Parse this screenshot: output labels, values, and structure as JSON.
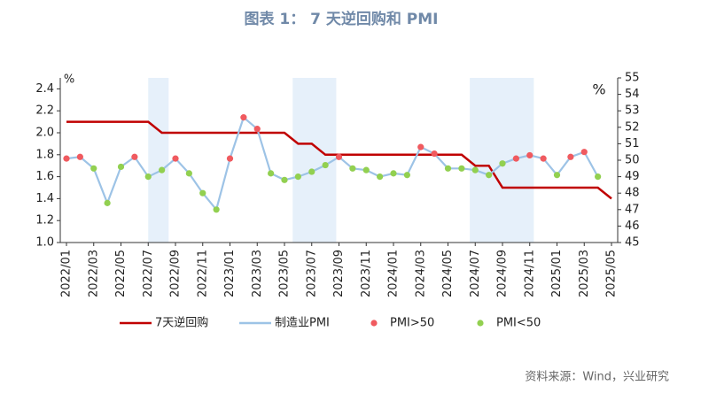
{
  "chart_data": {
    "type": "line",
    "title": "图表 1： 7 天逆回购和 PMI",
    "source": "资料来源：Wind，兴业研究",
    "y_unit": "%",
    "y2_unit": "%",
    "categories": [
      "2022/01",
      null,
      "2022/03",
      null,
      "2022/05",
      null,
      "2022/07",
      null,
      "2022/09",
      null,
      "2022/11",
      null,
      "2023/01",
      null,
      "2023/03",
      null,
      "2023/05",
      null,
      "2023/07",
      null,
      "2023/09",
      null,
      "2023/11",
      null,
      "2024/01",
      null,
      "2024/03",
      null,
      "2024/05",
      null,
      "2024/07",
      null,
      "2024/09",
      null,
      "2024/11",
      null,
      "2025/01",
      null,
      "2025/03",
      null,
      "2025/05"
    ],
    "ylim": [
      1.0,
      2.5
    ],
    "yticks": [
      {
        "value": 1.0,
        "label": "1.0"
      },
      1.2,
      1.4,
      1.6,
      1.8,
      {
        "value": 2.0,
        "label": "2.0"
      },
      2.2,
      2.4
    ],
    "y2lim": [
      45,
      55
    ],
    "y2ticks": [
      45,
      46,
      47,
      48,
      49,
      50,
      51,
      52,
      53,
      54,
      55
    ],
    "series": [
      {
        "name": "7天逆回购",
        "color": "#c00000",
        "style": "line",
        "values": [
          2.1,
          2.1,
          2.1,
          2.1,
          2.1,
          2.1,
          2.1,
          2.0,
          2.0,
          2.0,
          2.0,
          2.0,
          2.0,
          2.0,
          2.0,
          2.0,
          2.0,
          1.9,
          1.9,
          1.8,
          1.8,
          1.8,
          1.8,
          1.8,
          1.8,
          1.8,
          1.8,
          1.8,
          1.8,
          1.8,
          1.7,
          1.7,
          1.5,
          1.5,
          1.5,
          1.5,
          1.5,
          1.5,
          1.5,
          1.5,
          1.4
        ]
      },
      {
        "name": "制造业PMI",
        "color": "#9dc3e6",
        "style": "line",
        "axis": "y2",
        "values": [
          50.1,
          50.2,
          49.5,
          47.4,
          49.6,
          50.2,
          49.0,
          49.4,
          50.1,
          49.2,
          48.0,
          47.0,
          50.1,
          52.6,
          51.9,
          49.2,
          48.8,
          49.0,
          49.3,
          49.7,
          50.2,
          49.5,
          49.4,
          49.0,
          49.2,
          49.1,
          50.8,
          50.4,
          49.5,
          49.5,
          49.4,
          49.1,
          49.8,
          50.1,
          50.3,
          50.1,
          49.1,
          50.2,
          50.5,
          49.0,
          null
        ]
      },
      {
        "name": "PMI>50",
        "color": "#f05a5f",
        "style": "dot",
        "axis": "y2",
        "values": [
          50.1,
          50.2,
          null,
          null,
          null,
          50.2,
          null,
          null,
          50.1,
          null,
          null,
          null,
          50.1,
          52.6,
          51.9,
          null,
          null,
          null,
          null,
          null,
          50.2,
          null,
          null,
          null,
          null,
          null,
          50.8,
          50.4,
          null,
          null,
          null,
          null,
          null,
          50.1,
          50.3,
          50.1,
          null,
          50.2,
          50.5,
          null,
          null
        ]
      },
      {
        "name": "PMI<50",
        "color": "#92d050",
        "style": "dot",
        "axis": "y2",
        "values": [
          null,
          null,
          49.5,
          47.4,
          49.6,
          null,
          49.0,
          49.4,
          null,
          49.2,
          48.0,
          47.0,
          null,
          null,
          null,
          49.2,
          48.8,
          49.0,
          49.3,
          49.7,
          null,
          49.5,
          49.4,
          49.0,
          49.2,
          49.1,
          null,
          null,
          49.5,
          49.5,
          49.4,
          49.1,
          49.8,
          null,
          null,
          null,
          49.1,
          null,
          null,
          49.0,
          null
        ]
      }
    ]
  }
}
